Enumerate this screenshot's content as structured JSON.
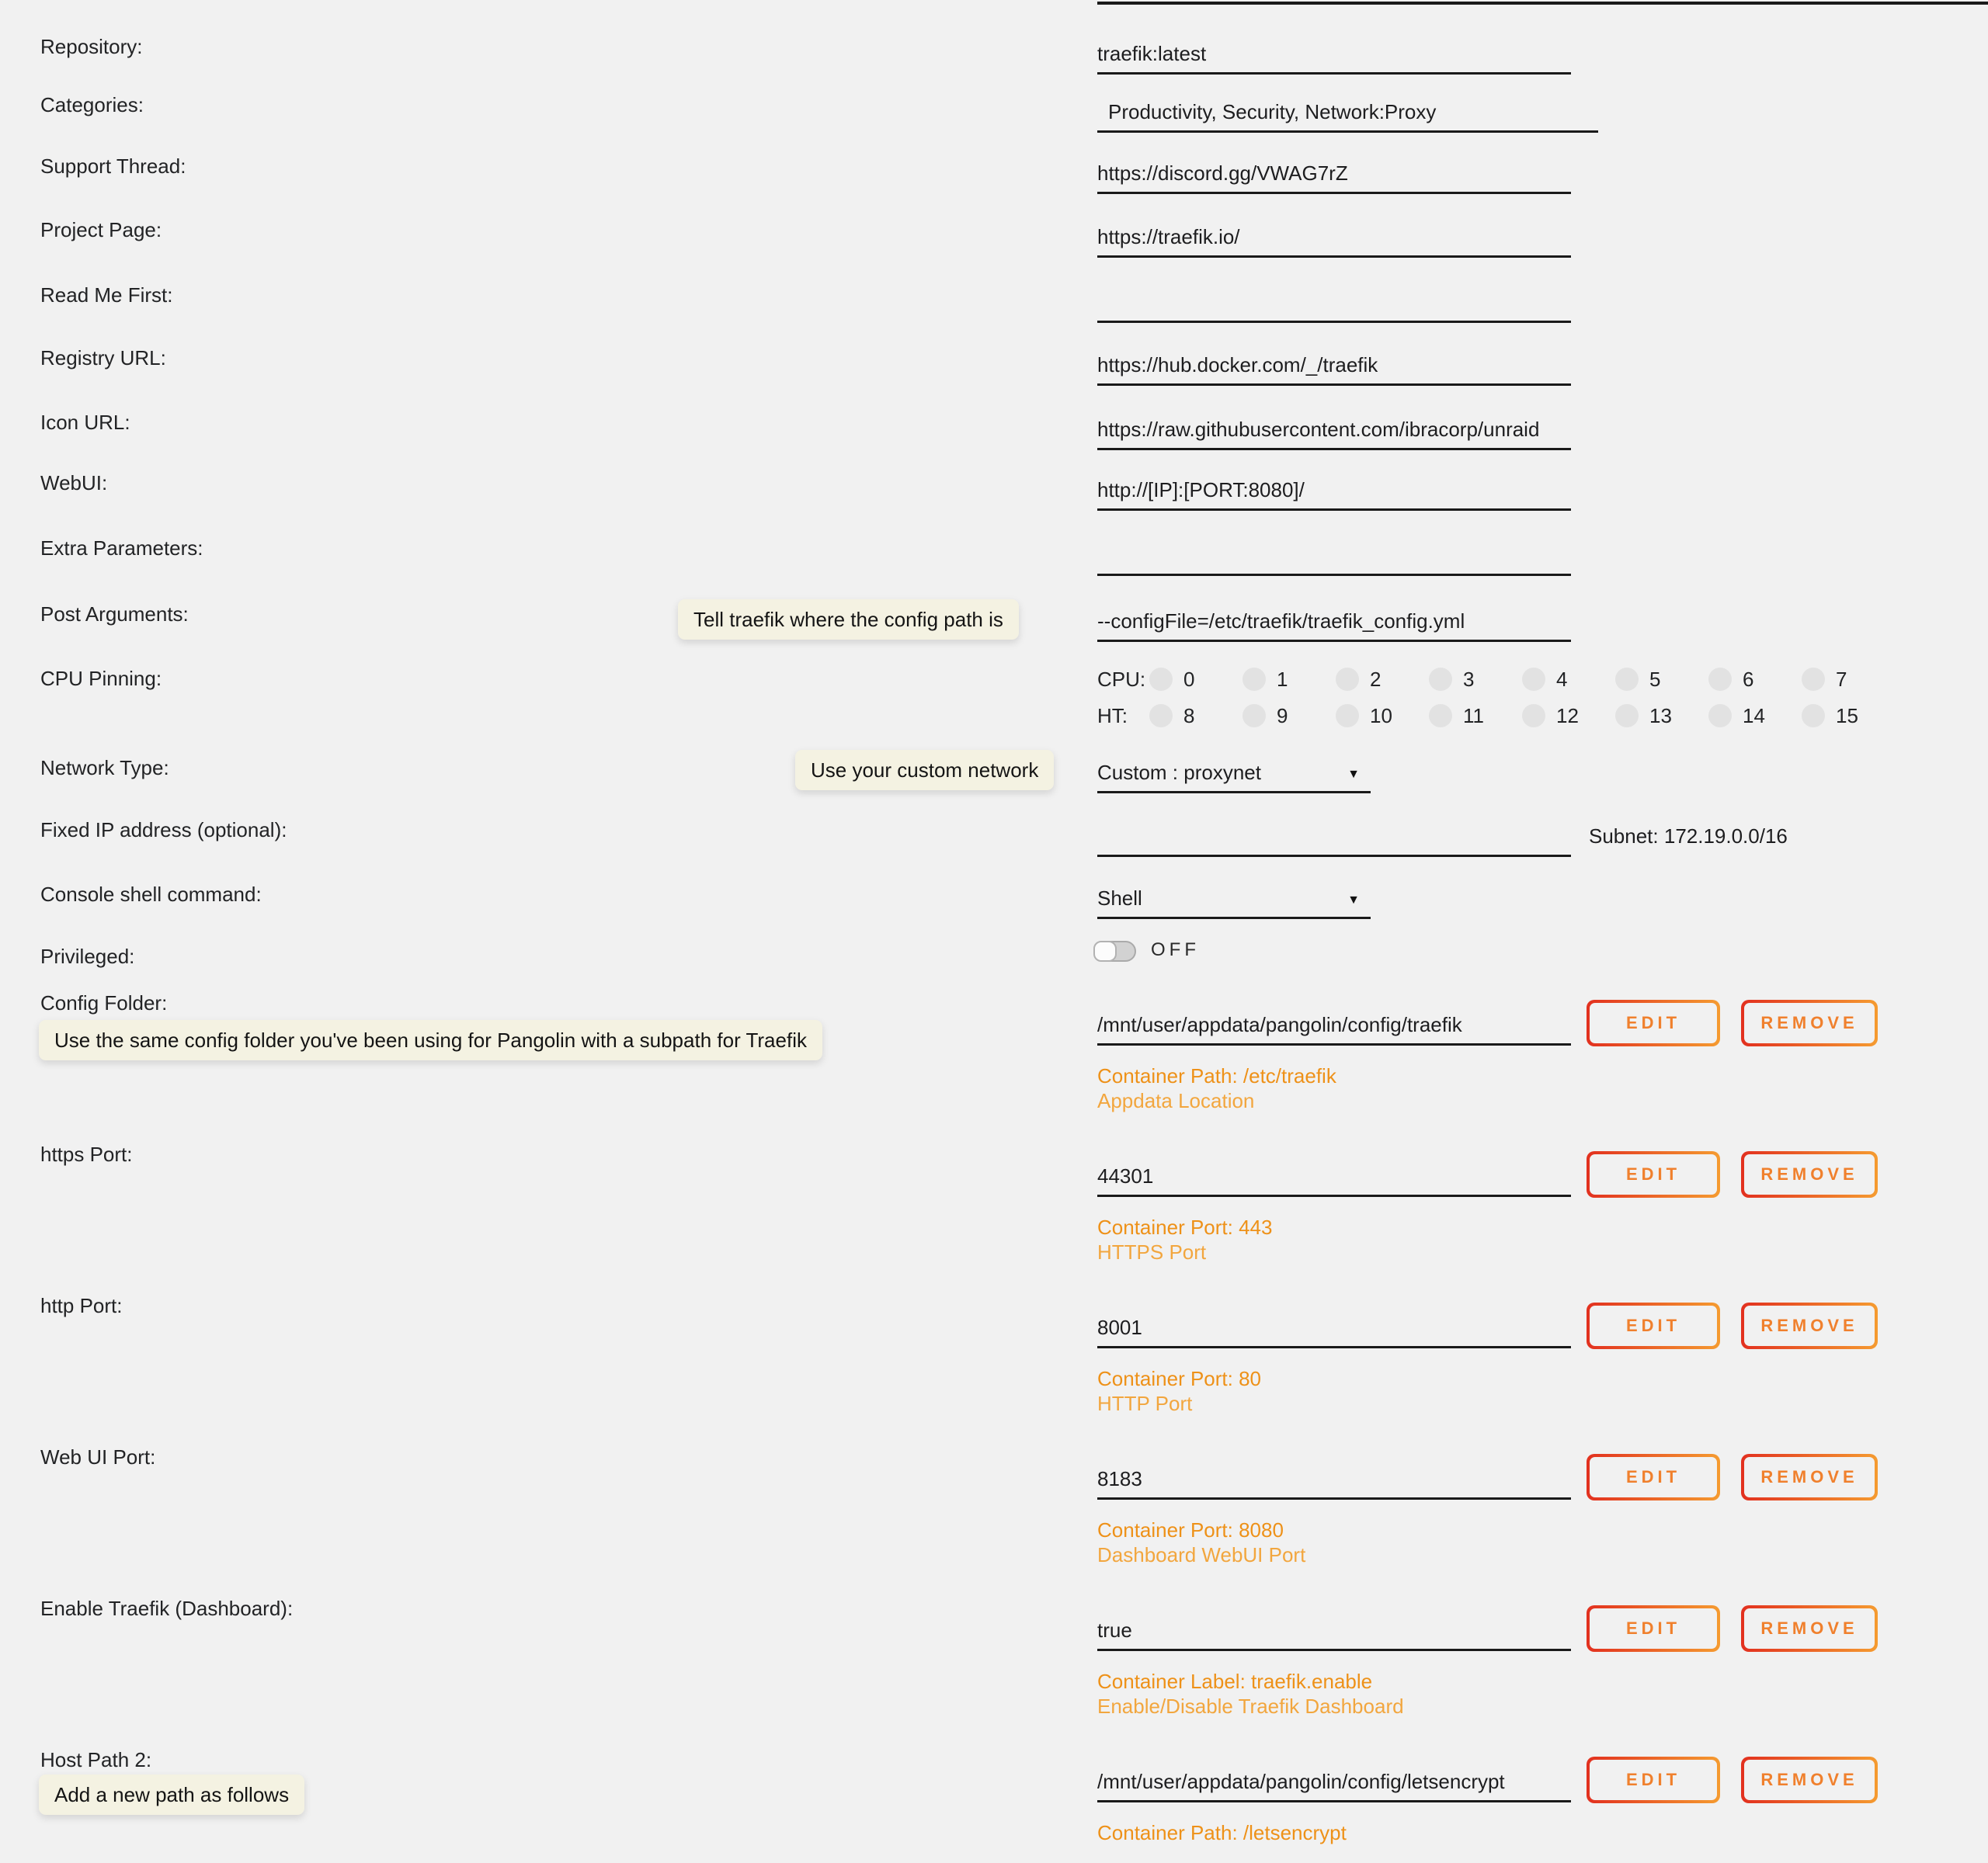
{
  "colors": {
    "background": "#f1f1f1",
    "tooltip_bg": "#f4f2e2",
    "underline": "#1a1a1a",
    "button_text": "#f0802d",
    "button_gradient_left": "#e2301f",
    "button_gradient_right": "#f59b30",
    "desc_orange_primary": "#ee9118",
    "desc_orange_secondary": "#f2a63e"
  },
  "buttons": {
    "edit": "EDIT",
    "remove": "REMOVE"
  },
  "form": {
    "simple_fields": [
      {
        "label": "Repository:",
        "value": "traefik:latest"
      },
      {
        "label": "Categories:",
        "value": "Productivity, Security, Network:Proxy"
      },
      {
        "label": "Support Thread:",
        "value": "https://discord.gg/VWAG7rZ"
      },
      {
        "label": "Project Page:",
        "value": "https://traefik.io/"
      },
      {
        "label": "Read Me First:",
        "value": ""
      },
      {
        "label": "Registry URL:",
        "value": "https://hub.docker.com/_/traefik"
      },
      {
        "label": "Icon URL:",
        "value": "https://raw.githubusercontent.com/ibracorp/unraid"
      },
      {
        "label": "WebUI:",
        "value": "http://[IP]:[PORT:8080]/"
      },
      {
        "label": "Extra Parameters:",
        "value": ""
      },
      {
        "label": "Post Arguments:",
        "value": "--configFile=/etc/traefik/traefik_config.yml",
        "tooltip": "Tell traefik where the config path is"
      }
    ],
    "cpu_pinning": {
      "label": "CPU Pinning:",
      "cpu_row_label": "CPU:",
      "ht_row_label": "HT:",
      "cpu_ids": [
        "0",
        "1",
        "2",
        "3",
        "4",
        "5",
        "6",
        "7"
      ],
      "ht_ids": [
        "8",
        "9",
        "10",
        "11",
        "12",
        "13",
        "14",
        "15"
      ]
    },
    "network": {
      "label": "Network Type:",
      "value": "Custom : proxynet",
      "caret": "▼",
      "tooltip": "Use your custom network"
    },
    "fixed_ip": {
      "label": "Fixed IP address (optional):",
      "value": "",
      "subnet": "Subnet: 172.19.0.0/16"
    },
    "console": {
      "label": "Console shell command:",
      "value": "Shell",
      "caret": "▼"
    },
    "privileged": {
      "label": "Privileged:",
      "state": "OFF"
    },
    "mapped_fields": [
      {
        "label": "Config Folder:",
        "tooltip": "Use the same config folder you've been using for Pangolin with a subpath for Traefik",
        "value": "/mnt/user/appdata/pangolin/config/traefik",
        "desc1": "Container Path: /etc/traefik",
        "desc2": "Appdata Location"
      },
      {
        "label": "https Port:",
        "value": "44301",
        "desc1": "Container Port: 443",
        "desc2": "HTTPS Port"
      },
      {
        "label": "http Port:",
        "value": "8001",
        "desc1": "Container Port: 80",
        "desc2": "HTTP Port"
      },
      {
        "label": "Web UI Port:",
        "value": "8183",
        "desc1": "Container Port: 8080",
        "desc2": "Dashboard WebUI Port"
      },
      {
        "label": "Enable Traefik (Dashboard):",
        "value": "true",
        "desc1": "Container Label: traefik.enable",
        "desc2": "Enable/Disable Traefik Dashboard"
      },
      {
        "label": "Host Path 2:",
        "tooltip": "Add a new path as follows",
        "value": "/mnt/user/appdata/pangolin/config/letsencrypt",
        "desc1": "Container Path: /letsencrypt"
      }
    ]
  }
}
